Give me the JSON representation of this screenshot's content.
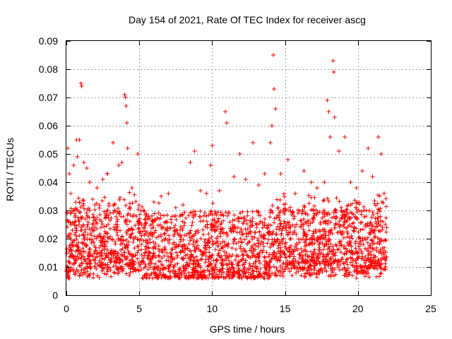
{
  "chart_data": {
    "type": "scatter",
    "title": "Day 154 of 2021, Rate Of TEC Index for receiver ascg",
    "xlabel": "GPS time / hours",
    "ylabel": "ROTI / TECUs",
    "xlim": [
      0,
      25
    ],
    "ylim": [
      0,
      0.09
    ],
    "x_ticks": [
      "0",
      "5",
      "10",
      "15",
      "20",
      "25"
    ],
    "y_ticks": [
      "0",
      "0.01",
      "0.02",
      "0.03",
      "0.04",
      "0.05",
      "0.06",
      "0.07",
      "0.08",
      "0.09"
    ],
    "grid": true,
    "marker": "plus",
    "series_color": "#ff0000",
    "data_extent_hours": [
      0,
      22
    ],
    "series": [
      {
        "points": [
          [
            0.1,
            0.052
          ],
          [
            0.2,
            0.043
          ],
          [
            0.3,
            0.036
          ],
          [
            0.5,
            0.046
          ],
          [
            0.7,
            0.055
          ],
          [
            0.75,
            0.049
          ],
          [
            0.9,
            0.055
          ],
          [
            1.0,
            0.075
          ],
          [
            1.05,
            0.074
          ],
          [
            1.2,
            0.047
          ],
          [
            1.4,
            0.045
          ],
          [
            1.6,
            0.04
          ],
          [
            1.8,
            0.034
          ],
          [
            2.1,
            0.038
          ],
          [
            2.5,
            0.041
          ],
          [
            2.8,
            0.043
          ],
          [
            3.2,
            0.054
          ],
          [
            3.6,
            0.046
          ],
          [
            3.8,
            0.047
          ],
          [
            4.0,
            0.071
          ],
          [
            4.05,
            0.07
          ],
          [
            4.1,
            0.067
          ],
          [
            4.15,
            0.061
          ],
          [
            4.2,
            0.052
          ],
          [
            4.5,
            0.038
          ],
          [
            4.9,
            0.05
          ],
          [
            5.3,
            0.03
          ],
          [
            6.0,
            0.033
          ],
          [
            6.5,
            0.035
          ],
          [
            7.0,
            0.036
          ],
          [
            7.5,
            0.031
          ],
          [
            8.0,
            0.032
          ],
          [
            8.5,
            0.047
          ],
          [
            8.8,
            0.051
          ],
          [
            9.2,
            0.037
          ],
          [
            9.6,
            0.036
          ],
          [
            9.9,
            0.046
          ],
          [
            10.0,
            0.053
          ],
          [
            10.5,
            0.037
          ],
          [
            10.9,
            0.065
          ],
          [
            11.0,
            0.061
          ],
          [
            11.5,
            0.042
          ],
          [
            11.9,
            0.05
          ],
          [
            12.3,
            0.041
          ],
          [
            12.8,
            0.054
          ],
          [
            13.2,
            0.039
          ],
          [
            13.6,
            0.043
          ],
          [
            14.0,
            0.054
          ],
          [
            14.1,
            0.06
          ],
          [
            14.2,
            0.085
          ],
          [
            14.25,
            0.073
          ],
          [
            14.35,
            0.066
          ],
          [
            14.7,
            0.043
          ],
          [
            15.2,
            0.048
          ],
          [
            15.7,
            0.036
          ],
          [
            16.3,
            0.044
          ],
          [
            16.8,
            0.04
          ],
          [
            17.2,
            0.038
          ],
          [
            17.7,
            0.04
          ],
          [
            17.9,
            0.069
          ],
          [
            18.0,
            0.065
          ],
          [
            18.1,
            0.056
          ],
          [
            18.3,
            0.083
          ],
          [
            18.35,
            0.079
          ],
          [
            18.4,
            0.063
          ],
          [
            18.7,
            0.051
          ],
          [
            19.1,
            0.056
          ],
          [
            19.5,
            0.04
          ],
          [
            19.9,
            0.038
          ],
          [
            20.3,
            0.044
          ],
          [
            20.7,
            0.052
          ],
          [
            21.0,
            0.042
          ],
          [
            21.4,
            0.056
          ],
          [
            21.6,
            0.05
          ],
          [
            21.8,
            0.036
          ]
        ]
      }
    ]
  }
}
